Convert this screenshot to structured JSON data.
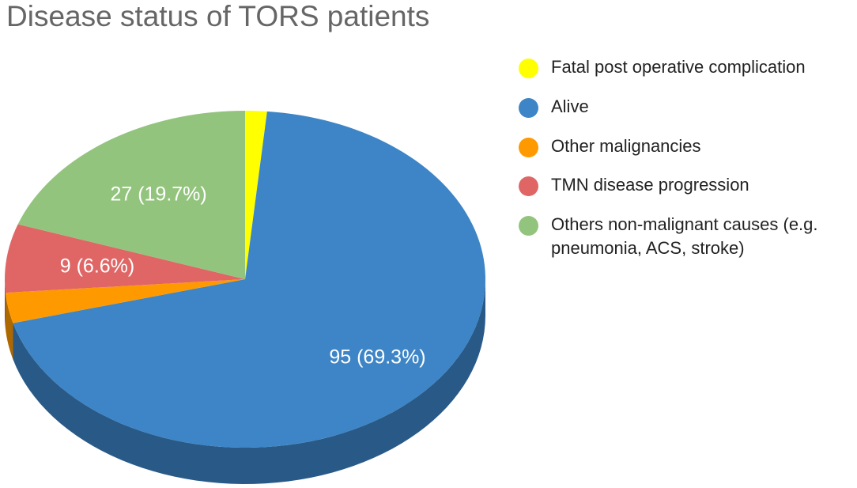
{
  "chart_data": {
    "type": "pie",
    "title": "Disease status of TORS patients",
    "slices": [
      {
        "name": "Fatal post operative complication",
        "value": 2,
        "label": "",
        "color": "#FFFF00"
      },
      {
        "name": "Alive",
        "value": 95,
        "label": "95 (69.3%)",
        "color": "#3D85C6"
      },
      {
        "name": "Other malignancies",
        "value": 4,
        "label": "",
        "color": "#FF9900"
      },
      {
        "name": "TMN disease progression",
        "value": 9,
        "label": "9 (6.6%)",
        "color": "#E06666"
      },
      {
        "name": "Others non-malignant causes (e.g. pneumonia, ACS, stroke)",
        "value": 27,
        "label": "27 (19.7%)",
        "color": "#93C47D"
      }
    ],
    "legend_position": "right",
    "style": "3d"
  }
}
